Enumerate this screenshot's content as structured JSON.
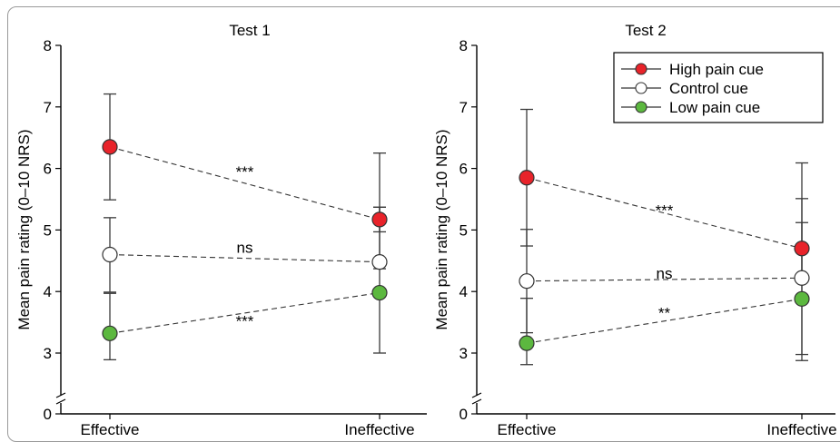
{
  "chart_data": [
    {
      "type": "line",
      "title": "Test 1",
      "ylabel": "Mean pain rating (0–10 NRS)",
      "xlabel": "",
      "categories": [
        "Effective",
        "Ineffective"
      ],
      "ylim": [
        0,
        8
      ],
      "yticks": [
        "0",
        "3",
        "4",
        "5",
        "6",
        "7",
        "8"
      ],
      "axis_break": true,
      "grid": false,
      "series": [
        {
          "name": "High pain cue",
          "color": "#e8232a",
          "values": [
            6.35,
            5.17
          ],
          "err_low": [
            5.49,
            4.97
          ],
          "err_high": [
            7.21,
            5.37
          ]
        },
        {
          "name": "Control cue",
          "color": "#ffffff",
          "values": [
            4.6,
            4.48
          ],
          "err_low": [
            3.99,
            4.37
          ],
          "err_high": [
            5.2,
            5.37
          ]
        },
        {
          "name": "Low pain cue",
          "color": "#5cb83f",
          "values": [
            3.32,
            3.98
          ],
          "err_low": [
            2.67,
            3.0
          ],
          "err_high": [
            3.97,
            6.25
          ]
        }
      ],
      "annotations": [
        {
          "text": "***",
          "x": 0.5,
          "y": 5.95
        },
        {
          "text": "ns",
          "x": 0.5,
          "y": 4.72
        },
        {
          "text": "***",
          "x": 0.5,
          "y": 3.52
        }
      ]
    },
    {
      "type": "line",
      "title": "Test 2",
      "ylabel": "Mean pain rating (0–10 NRS)",
      "xlabel": "",
      "categories": [
        "Effective",
        "Ineffective"
      ],
      "ylim": [
        0,
        8
      ],
      "yticks": [
        "0",
        "3",
        "4",
        "5",
        "6",
        "7",
        "8"
      ],
      "axis_break": true,
      "grid": false,
      "legend_position": "top-right",
      "series": [
        {
          "name": "High pain cue",
          "color": "#e8232a",
          "values": [
            5.85,
            4.7
          ],
          "err_low": [
            4.74,
            4.28
          ],
          "err_high": [
            6.96,
            5.12
          ]
        },
        {
          "name": "Control cue",
          "color": "#ffffff",
          "values": [
            4.17,
            4.22
          ],
          "err_low": [
            3.33,
            2.93
          ],
          "err_high": [
            5.01,
            5.51
          ]
        },
        {
          "name": "Low pain cue",
          "color": "#5cb83f",
          "values": [
            3.16,
            3.88
          ],
          "err_low": [
            2.43,
            2.63
          ],
          "err_high": [
            3.89,
            6.09
          ]
        }
      ],
      "annotations": [
        {
          "text": "***",
          "x": 0.5,
          "y": 5.32
        },
        {
          "text": "ns",
          "x": 0.5,
          "y": 4.3
        },
        {
          "text": "**",
          "x": 0.5,
          "y": 3.66
        }
      ]
    }
  ]
}
